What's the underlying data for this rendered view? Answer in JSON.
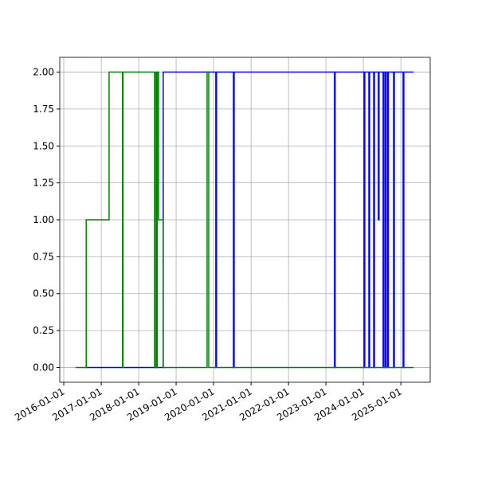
{
  "chart_data": {
    "type": "line",
    "drawstyle": "steps-post",
    "grid": true,
    "xlim": [
      "2015-11-23",
      "2025-10-14"
    ],
    "ylim": [
      -0.1,
      2.1
    ],
    "xticks": [
      "2016-01-01",
      "2017-01-01",
      "2018-01-01",
      "2019-01-01",
      "2020-01-01",
      "2021-01-01",
      "2022-01-01",
      "2023-01-01",
      "2024-01-01",
      "2025-01-01"
    ],
    "yticks": [
      {
        "value": 0,
        "label": "0.00"
      },
      {
        "value": 0.25,
        "label": "0.25"
      },
      {
        "value": 0.5,
        "label": "0.50"
      },
      {
        "value": 0.75,
        "label": "0.75"
      },
      {
        "value": 1,
        "label": "1.00"
      },
      {
        "value": 1.25,
        "label": "1.25"
      },
      {
        "value": 1.5,
        "label": "1.50"
      },
      {
        "value": 1.75,
        "label": "1.75"
      },
      {
        "value": 2,
        "label": "2.00"
      }
    ],
    "series": [
      {
        "color": "#0000ff",
        "x": [
          "2016-08-07",
          "2018-08-28",
          "2020-01-23",
          "2020-01-30",
          "2020-07-13",
          "2020-07-20",
          "2023-03-25",
          "2023-04-01",
          "2024-01-08",
          "2024-01-15",
          "2024-02-24",
          "2024-03-02",
          "2024-04-11",
          "2024-04-18",
          "2024-05-26",
          "2024-06-02",
          "2024-07-12",
          "2024-07-20",
          "2024-08-03",
          "2024-08-10",
          "2024-08-25",
          "2024-09-01",
          "2024-10-22",
          "2024-10-29",
          "2025-01-23",
          "2025-01-30",
          "2025-05-05"
        ],
        "values": [
          0,
          2,
          0,
          2,
          0,
          2,
          0,
          2,
          0,
          2,
          0,
          2,
          0,
          2,
          1,
          2,
          0,
          2,
          0,
          2,
          0,
          2,
          0,
          2,
          0,
          2,
          2
        ]
      },
      {
        "color": "#008000",
        "x": [
          "2016-04-25",
          "2016-08-07",
          "2017-03-18",
          "2017-07-27",
          "2017-08-01",
          "2018-06-05",
          "2018-06-12",
          "2018-06-25",
          "2018-07-01",
          "2018-07-15",
          "2018-08-28",
          "2019-10-30",
          "2019-11-15",
          "2025-05-05"
        ],
        "values": [
          0,
          1,
          2,
          0,
          2,
          0,
          2,
          0,
          2,
          1,
          0,
          2,
          0,
          0
        ]
      }
    ]
  }
}
